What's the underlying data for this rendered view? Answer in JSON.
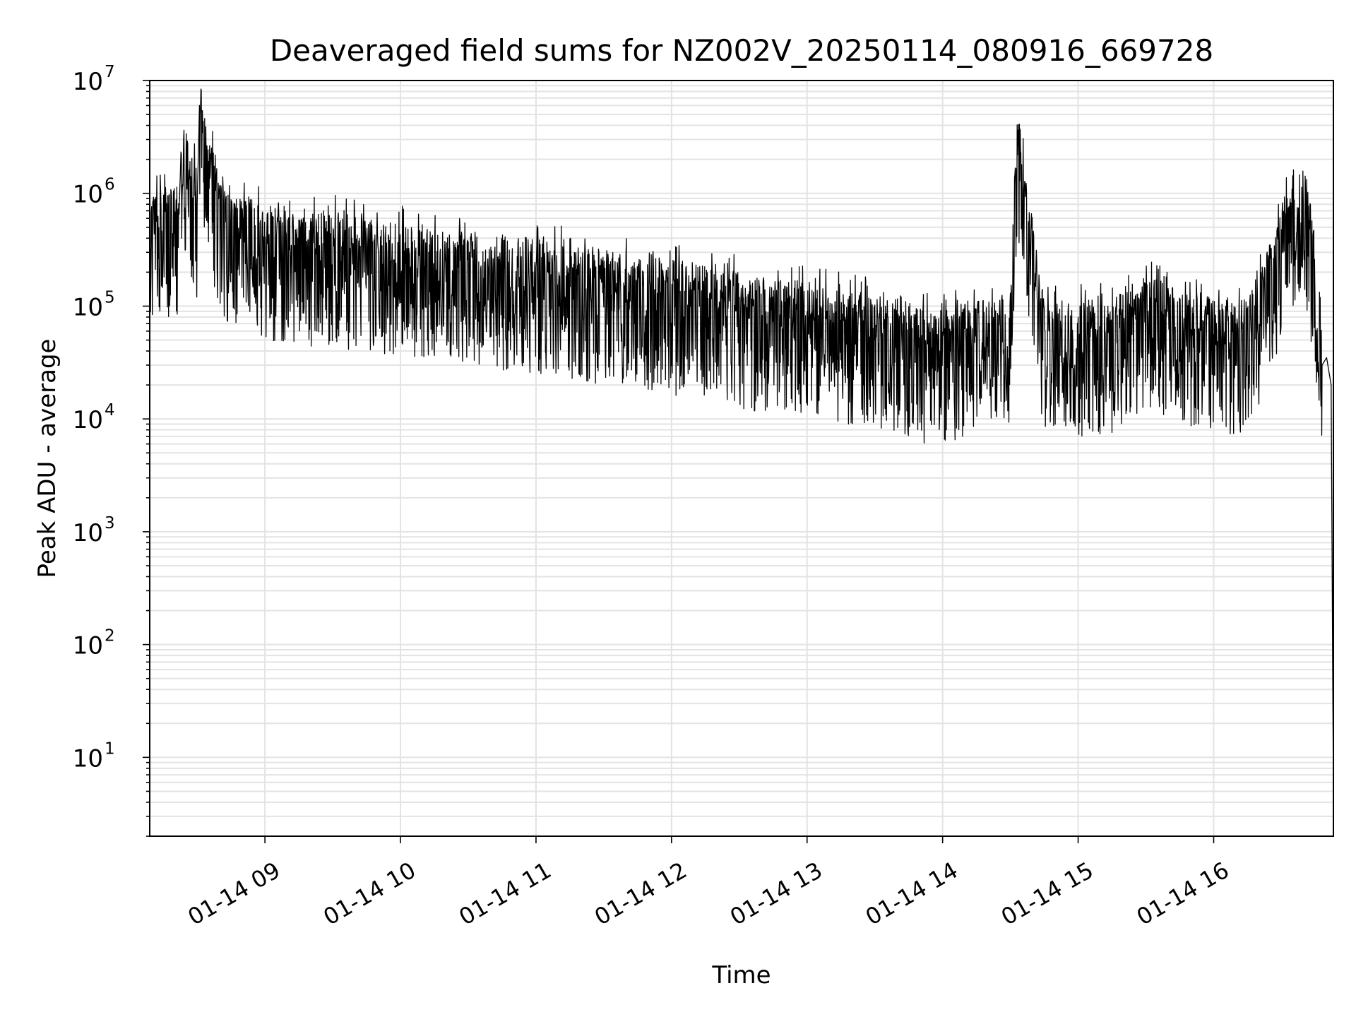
{
  "chart_data": {
    "type": "line",
    "title": "Deaveraged field sums for NZ002V_20250114_080916_669728",
    "xlabel": "Time",
    "ylabel": "Peak ADU - average",
    "yscale": "log",
    "ylim": [
      2,
      10000000
    ],
    "xlim": [
      "2025-01-14 08:09",
      "2025-01-14 16:53"
    ],
    "grid": true,
    "line_color": "#000000",
    "grid_color": "#e3e3e3",
    "x_ticks": [
      {
        "time": "2025-01-14 09:00",
        "label": "01-14 09"
      },
      {
        "time": "2025-01-14 10:00",
        "label": "01-14 10"
      },
      {
        "time": "2025-01-14 11:00",
        "label": "01-14 11"
      },
      {
        "time": "2025-01-14 12:00",
        "label": "01-14 12"
      },
      {
        "time": "2025-01-14 13:00",
        "label": "01-14 13"
      },
      {
        "time": "2025-01-14 14:00",
        "label": "01-14 14"
      },
      {
        "time": "2025-01-14 15:00",
        "label": "01-14 15"
      },
      {
        "time": "2025-01-14 16:00",
        "label": "01-14 16"
      }
    ],
    "y_ticks": [
      {
        "value": 10,
        "base": "10",
        "exp": "1"
      },
      {
        "value": 100,
        "base": "10",
        "exp": "2"
      },
      {
        "value": 1000,
        "base": "10",
        "exp": "3"
      },
      {
        "value": 10000,
        "base": "10",
        "exp": "4"
      },
      {
        "value": 100000,
        "base": "10",
        "exp": "5"
      },
      {
        "value": 1000000,
        "base": "10",
        "exp": "6"
      },
      {
        "value": 10000000,
        "base": "10",
        "exp": "7"
      }
    ],
    "series": [
      {
        "x": [
          "2025-01-14 08:09",
          "2025-01-14 08:15",
          "2025-01-14 08:22",
          "2025-01-14 08:23",
          "2025-01-14 08:30",
          "2025-01-14 08:31",
          "2025-01-14 08:40",
          "2025-01-14 08:50",
          "2025-01-14 09:00",
          "2025-01-14 09:15",
          "2025-01-14 09:30",
          "2025-01-14 09:45",
          "2025-01-14 10:00",
          "2025-01-14 10:20",
          "2025-01-14 10:40",
          "2025-01-14 11:00",
          "2025-01-14 11:20",
          "2025-01-14 11:40",
          "2025-01-14 12:00",
          "2025-01-14 12:20",
          "2025-01-14 12:40",
          "2025-01-14 13:00",
          "2025-01-14 13:20",
          "2025-01-14 13:40",
          "2025-01-14 13:55",
          "2025-01-14 14:10",
          "2025-01-14 14:30",
          "2025-01-14 14:33",
          "2025-01-14 14:45",
          "2025-01-14 15:00",
          "2025-01-14 15:15",
          "2025-01-14 15:30",
          "2025-01-14 15:45",
          "2025-01-14 16:00",
          "2025-01-14 16:10",
          "2025-01-14 16:20",
          "2025-01-14 16:30",
          "2025-01-14 16:35",
          "2025-01-14 16:40",
          "2025-01-14 16:45",
          "2025-01-14 16:48",
          "2025-01-14 16:50",
          "2025-01-14 16:52",
          "2025-01-14 16:53"
        ],
        "y": [
          600000,
          550000,
          650000,
          3000000,
          800000,
          5500000,
          600000,
          500000,
          400000,
          350000,
          350000,
          300000,
          280000,
          250000,
          220000,
          200000,
          170000,
          150000,
          130000,
          110000,
          90000,
          80000,
          70000,
          60000,
          45000,
          55000,
          70000,
          3000000,
          60000,
          55000,
          60000,
          100000,
          70000,
          60000,
          50000,
          100000,
          400000,
          800000,
          1000000,
          200000,
          30000,
          35000,
          20000,
          4
        ]
      }
    ]
  }
}
